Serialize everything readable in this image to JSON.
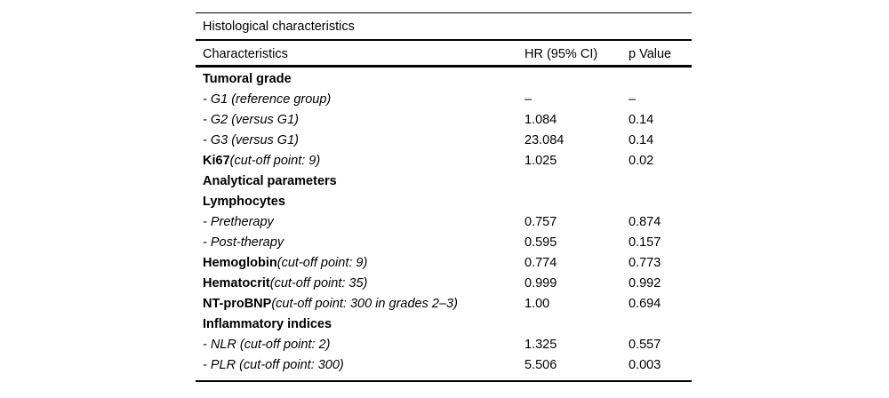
{
  "table": {
    "title": "Histological characteristics",
    "columns": [
      "Characteristics",
      "HR (95% CI)",
      "p Value"
    ],
    "rows": [
      {
        "type": "section",
        "bold": "Tumoral grade",
        "italic": "",
        "hr": "",
        "p": ""
      },
      {
        "type": "italic",
        "bold": "",
        "italic": "- G1 (reference group)",
        "hr": "–",
        "p": "–"
      },
      {
        "type": "italic",
        "bold": "",
        "italic": "- G2 (versus G1)",
        "hr": "1.084",
        "p": "0.14"
      },
      {
        "type": "italic",
        "bold": "",
        "italic": "- G3 (versus G1)",
        "hr": "23.084",
        "p": "0.14"
      },
      {
        "type": "mixed",
        "bold": "Ki67",
        "italic": "(cut-off point: 9)",
        "hr": "1.025",
        "p": "0.02"
      },
      {
        "type": "section",
        "bold": "Analytical parameters",
        "italic": "",
        "hr": "",
        "p": ""
      },
      {
        "type": "section",
        "bold": "Lymphocytes",
        "italic": "",
        "hr": "",
        "p": ""
      },
      {
        "type": "italic",
        "bold": "",
        "italic": "- Pretherapy",
        "hr": "0.757",
        "p": "0.874"
      },
      {
        "type": "italic",
        "bold": "",
        "italic": "- Post-therapy",
        "hr": "0.595",
        "p": "0.157"
      },
      {
        "type": "mixed",
        "bold": "Hemoglobin",
        "italic": "(cut-off point: 9)",
        "hr": "0.774",
        "p": "0.773"
      },
      {
        "type": "mixed",
        "bold": "Hematocrit",
        "italic": "(cut-off point: 35)",
        "hr": "0.999",
        "p": "0.992"
      },
      {
        "type": "mixed",
        "bold": "NT-proBNP",
        "italic": "(cut-off point: 300 in grades 2–3)",
        "hr": "1.00",
        "p": "0.694"
      },
      {
        "type": "section",
        "bold": "Inflammatory indices",
        "italic": "",
        "hr": "",
        "p": ""
      },
      {
        "type": "italic",
        "bold": "",
        "italic": "- NLR (cut-off point: 2)",
        "hr": "1.325",
        "p": "0.557"
      },
      {
        "type": "italic",
        "bold": "",
        "italic": "- PLR (cut-off point: 300)",
        "hr": "5.506",
        "p": "0.003"
      }
    ]
  }
}
